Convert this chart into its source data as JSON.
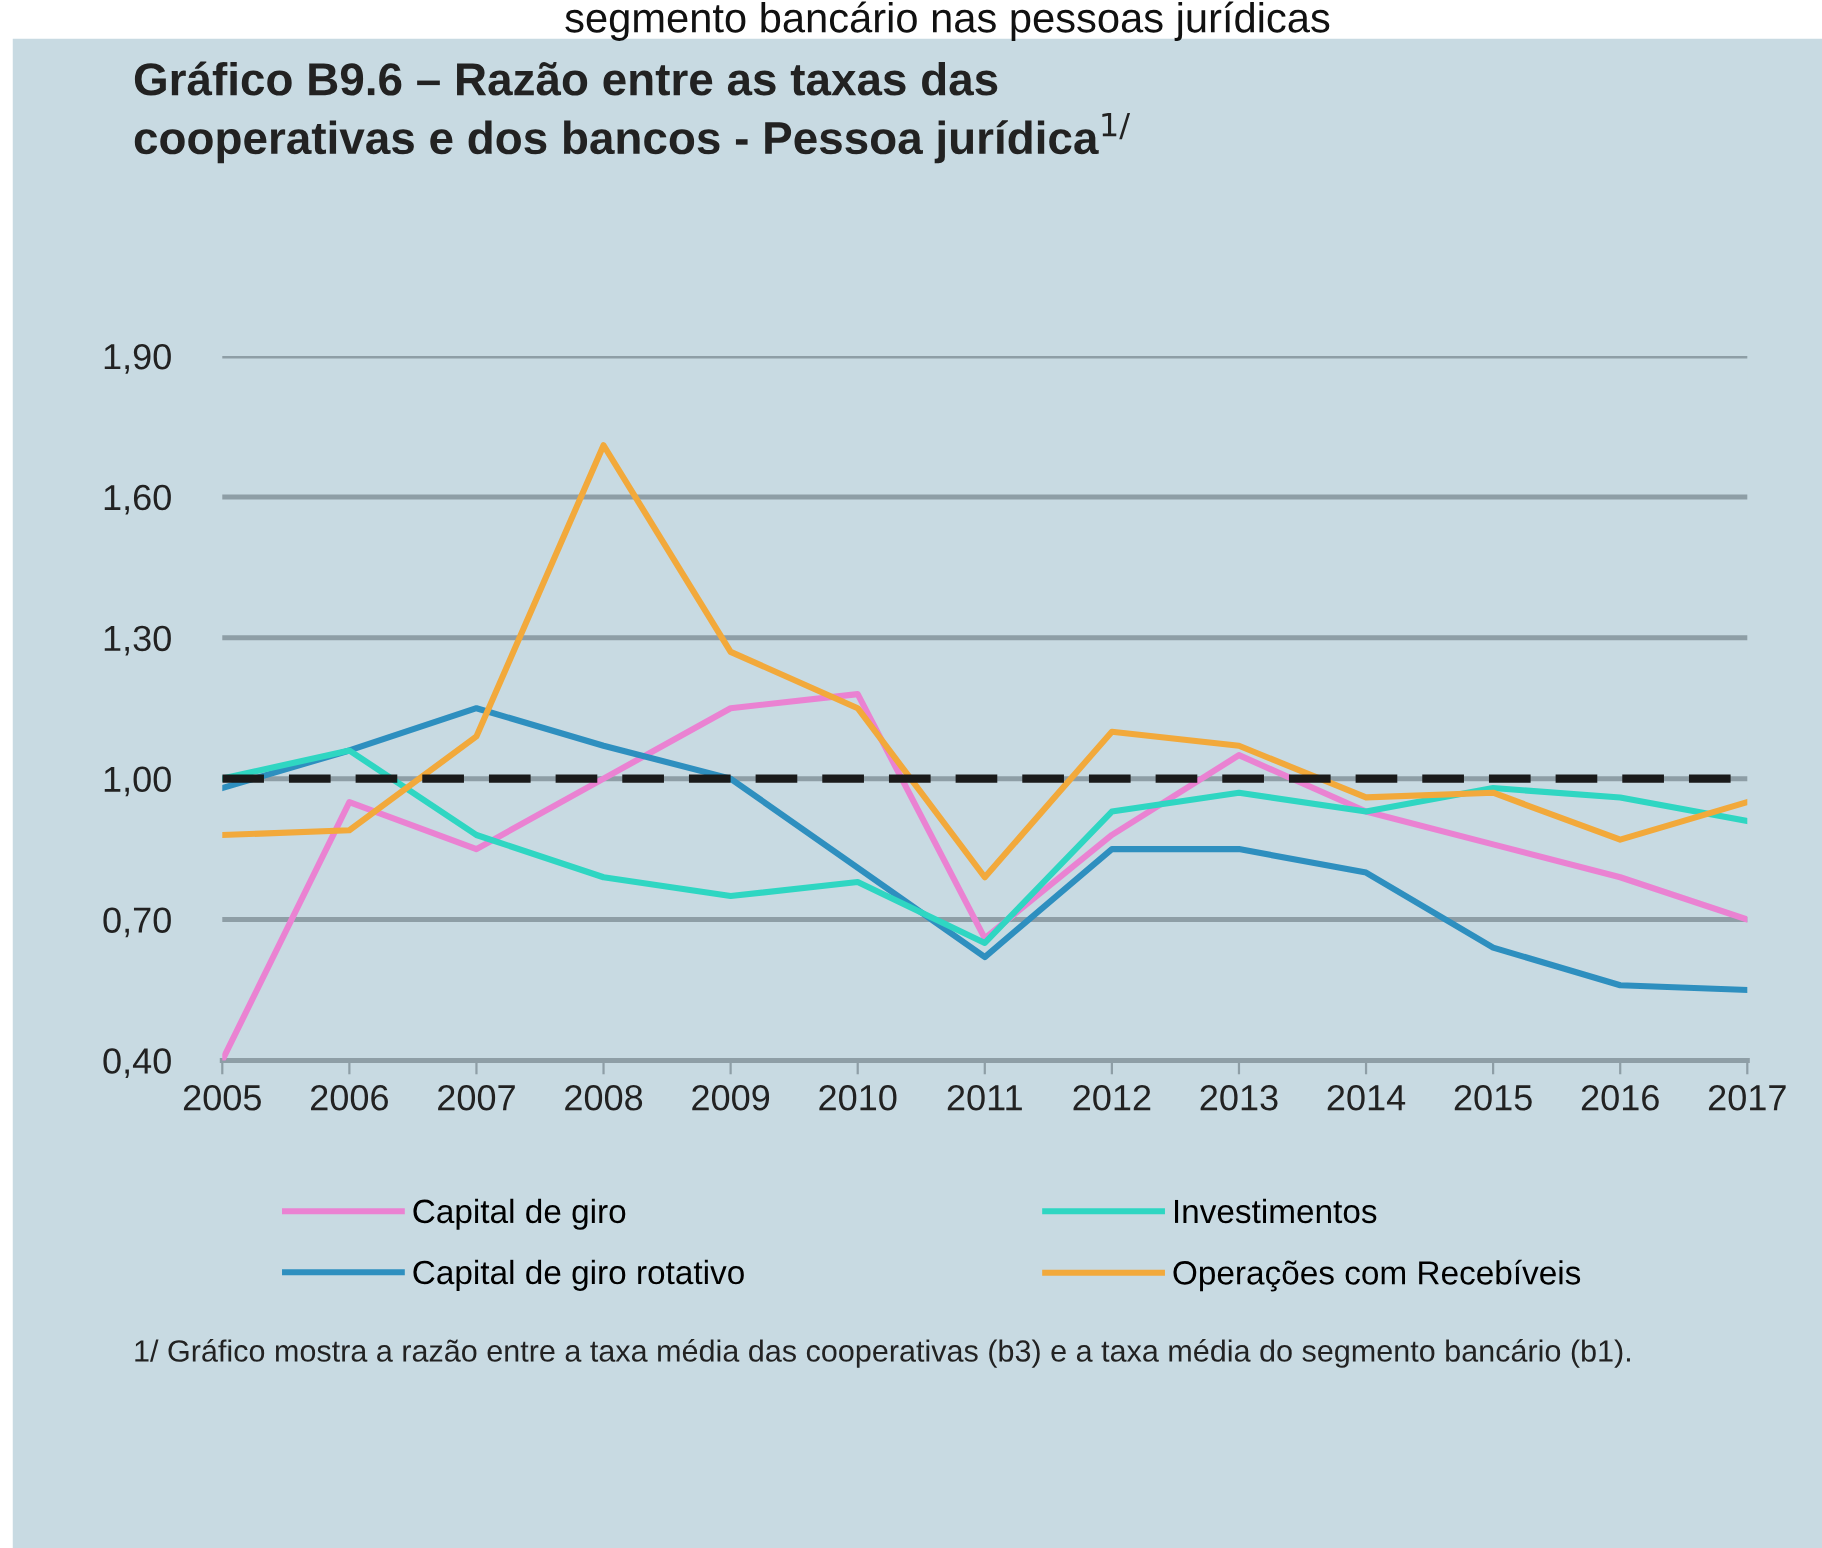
{
  "chart_data": {
    "type": "line",
    "title": "Gráfico B9.6 – Razão entre as taxas das\ncooperativas e dos bancos - Pessoa jurídica$^{1/}$",
    "categories": [
      "2005",
      "2006",
      "2007",
      "2008",
      "2009",
      "2010",
      "2011",
      "2012",
      "2013",
      "2014",
      "2015",
      "2016",
      "2017"
    ],
    "series": [
      {
        "name": "Capital de giro",
        "color": "#ea82d2",
        "values": [
          0.4,
          0.95,
          0.85,
          1.0,
          1.15,
          1.18,
          0.66,
          0.88,
          1.05,
          0.93,
          0.86,
          0.79,
          0.7
        ]
      },
      {
        "name": "Capital de giro rotativo",
        "color": "#2e8fbf",
        "values": [
          0.98,
          1.06,
          1.15,
          1.07,
          1.0,
          0.81,
          0.62,
          0.85,
          0.85,
          0.8,
          0.64,
          0.56,
          0.55
        ]
      },
      {
        "name": "Investimentos",
        "color": "#2fd6c2",
        "values": [
          1.0,
          1.06,
          0.88,
          0.79,
          0.75,
          0.78,
          0.65,
          0.93,
          0.97,
          0.93,
          0.98,
          0.96,
          0.91
        ]
      },
      {
        "name": "Operações com Recebíveis",
        "color": "#f2a93b",
        "values": [
          0.88,
          0.89,
          1.09,
          1.71,
          1.27,
          1.15,
          0.79,
          1.1,
          1.07,
          0.96,
          0.97,
          0.87,
          0.95
        ]
      }
    ],
    "ylim": [
      0.4,
      1.9
    ],
    "yticks": [
      {
        "value": 0.4,
        "label": "0,40"
      },
      {
        "value": 0.7,
        "label": "0,70"
      },
      {
        "value": 1.0,
        "label": "1,00"
      },
      {
        "value": 1.3,
        "label": "1,30"
      },
      {
        "value": 1.6,
        "label": "1,60"
      },
      {
        "value": 1.9,
        "label": "1,90"
      }
    ],
    "ref_lines": [
      {
        "axis": "y",
        "value": 1.0,
        "color": "#1a1a1a",
        "line_style": "dashed"
      }
    ],
    "grid": "y",
    "legend": "bottom",
    "line_style": "solid",
    "marker": "none",
    "annotations": [
      "segmento bancário nas pessoas jurídicas",
      "1/ Gráfico mostra a razão entre a taxa média das cooperativas (b3) e a taxa média do segmento bancário (b1)."
    ]
  }
}
